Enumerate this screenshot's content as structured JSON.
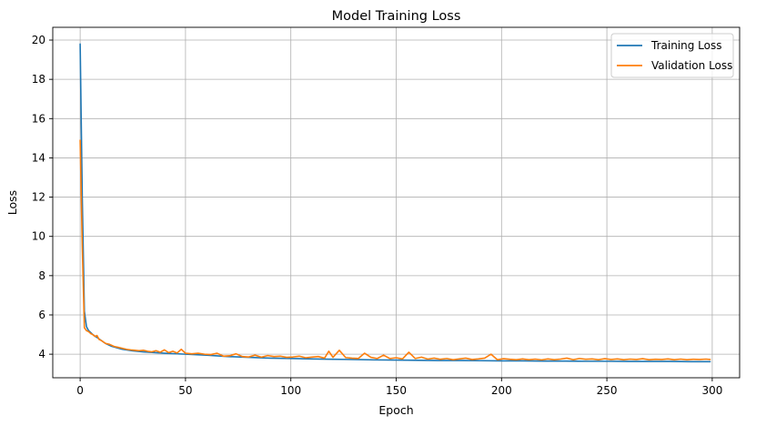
{
  "chart_data": {
    "type": "line",
    "title": "Model Training Loss",
    "xlabel": "Epoch",
    "ylabel": "Loss",
    "xlim": [
      -13,
      313
    ],
    "ylim": [
      2.8,
      20.65
    ],
    "xticks": [
      0,
      50,
      100,
      150,
      200,
      250,
      300
    ],
    "yticks": [
      4,
      6,
      8,
      10,
      12,
      14,
      16,
      18,
      20
    ],
    "grid": true,
    "legend_position": "top-right",
    "series": [
      {
        "name": "Training Loss",
        "color": "#1f77b4",
        "x": [
          0,
          1,
          2,
          3,
          4,
          5,
          6,
          8,
          10,
          12,
          15,
          20,
          25,
          30,
          40,
          50,
          60,
          70,
          80,
          90,
          100,
          110,
          120,
          130,
          140,
          150,
          160,
          170,
          180,
          190,
          200,
          210,
          220,
          230,
          240,
          250,
          260,
          270,
          280,
          290,
          299
        ],
        "y": [
          19.8,
          12.0,
          6.2,
          5.4,
          5.2,
          5.1,
          5.0,
          4.85,
          4.7,
          4.55,
          4.4,
          4.25,
          4.17,
          4.12,
          4.05,
          4.0,
          3.95,
          3.88,
          3.84,
          3.8,
          3.78,
          3.76,
          3.74,
          3.73,
          3.71,
          3.7,
          3.69,
          3.68,
          3.68,
          3.67,
          3.66,
          3.66,
          3.65,
          3.65,
          3.64,
          3.64,
          3.63,
          3.63,
          3.63,
          3.62,
          3.62
        ]
      },
      {
        "name": "Validation Loss",
        "color": "#ff7f0e",
        "x": [
          0,
          1,
          2,
          3,
          4,
          5,
          6,
          7,
          8,
          9,
          10,
          12,
          14,
          16,
          18,
          20,
          22,
          24,
          26,
          28,
          30,
          32,
          34,
          36,
          38,
          40,
          42,
          44,
          46,
          48,
          50,
          53,
          56,
          59,
          62,
          65,
          68,
          71,
          74,
          77,
          80,
          83,
          86,
          89,
          92,
          95,
          98,
          101,
          104,
          107,
          110,
          113,
          116,
          118,
          120,
          123,
          126,
          129,
          132,
          135,
          138,
          141,
          144,
          147,
          150,
          153,
          156,
          159,
          162,
          165,
          168,
          171,
          174,
          177,
          180,
          183,
          186,
          189,
          192,
          195,
          198,
          201,
          204,
          207,
          210,
          213,
          216,
          219,
          222,
          225,
          228,
          231,
          234,
          237,
          240,
          243,
          246,
          249,
          252,
          255,
          258,
          261,
          264,
          267,
          270,
          273,
          276,
          279,
          282,
          285,
          288,
          291,
          294,
          297,
          299
        ],
        "y": [
          14.9,
          9.5,
          5.35,
          5.2,
          5.15,
          5.05,
          5.0,
          4.9,
          4.95,
          4.75,
          4.7,
          4.55,
          4.5,
          4.4,
          4.35,
          4.3,
          4.25,
          4.22,
          4.2,
          4.18,
          4.2,
          4.15,
          4.12,
          4.18,
          4.1,
          4.22,
          4.08,
          4.15,
          4.06,
          4.25,
          4.05,
          4.02,
          4.05,
          4.0,
          3.98,
          4.05,
          3.9,
          3.92,
          4.02,
          3.88,
          3.86,
          3.95,
          3.85,
          3.93,
          3.88,
          3.9,
          3.84,
          3.86,
          3.9,
          3.82,
          3.85,
          3.88,
          3.8,
          4.15,
          3.84,
          4.2,
          3.83,
          3.8,
          3.78,
          4.05,
          3.84,
          3.78,
          3.95,
          3.78,
          3.82,
          3.76,
          4.1,
          3.78,
          3.85,
          3.75,
          3.8,
          3.74,
          3.78,
          3.72,
          3.76,
          3.8,
          3.73,
          3.76,
          3.8,
          4.0,
          3.72,
          3.77,
          3.74,
          3.72,
          3.76,
          3.72,
          3.75,
          3.71,
          3.76,
          3.72,
          3.75,
          3.8,
          3.72,
          3.78,
          3.74,
          3.76,
          3.72,
          3.77,
          3.73,
          3.76,
          3.72,
          3.75,
          3.73,
          3.77,
          3.72,
          3.74,
          3.73,
          3.76,
          3.72,
          3.75,
          3.72,
          3.74,
          3.73,
          3.75,
          3.73
        ]
      }
    ]
  }
}
